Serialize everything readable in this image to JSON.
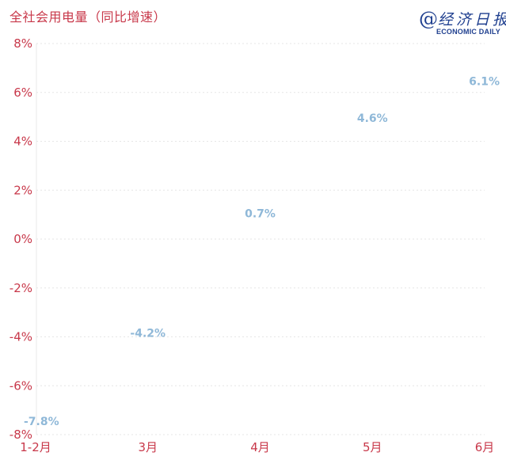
{
  "chart_data": {
    "type": "line",
    "title": "全社会用电量（同比增速）",
    "categories": [
      "1-2月",
      "3月",
      "4月",
      "5月",
      "6月"
    ],
    "series": [
      {
        "values": [
          -7.8,
          -4.2,
          0.7,
          4.6,
          6.1
        ]
      }
    ],
    "data_labels": [
      "-7.8%",
      "-4.2%",
      "0.7%",
      "4.6%",
      "6.1%"
    ],
    "ylim": [
      -8,
      8
    ],
    "yticks": [
      8,
      6,
      4,
      2,
      0,
      -2,
      -4,
      -6,
      -8
    ],
    "ytick_labels": [
      "8%",
      "6%",
      "4%",
      "2%",
      "0%",
      "-2%",
      "-4%",
      "-6%",
      "-8%"
    ],
    "grid": true,
    "colors": {
      "axis_text": "#c8384a",
      "data_label": "#8fb8d8",
      "grid": "#e6e6e6"
    }
  },
  "logo": {
    "symbol": "@",
    "name_cn": "经济日报",
    "name_en": "ECONOMIC DAILY"
  }
}
